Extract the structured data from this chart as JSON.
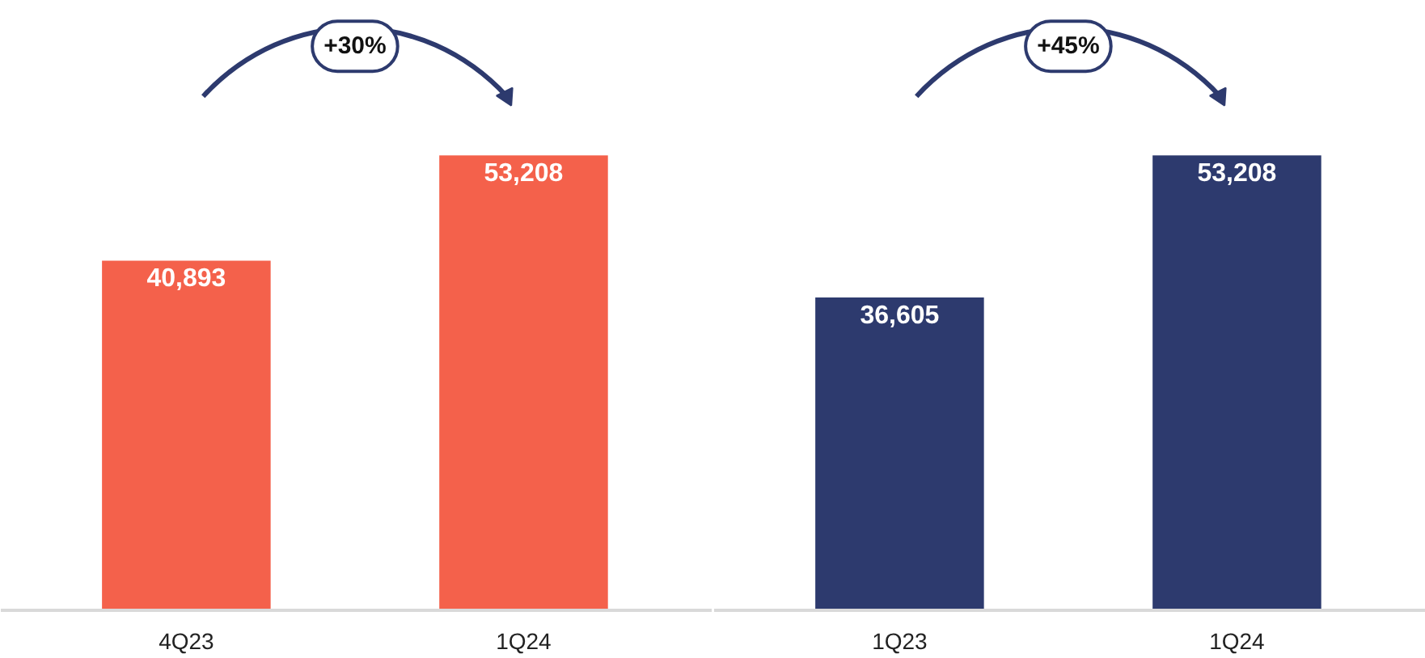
{
  "chart_data": [
    {
      "type": "bar",
      "categories": [
        "4Q23",
        "1Q24"
      ],
      "values": [
        40893,
        53208
      ],
      "value_labels": [
        "40,893",
        "53,208"
      ],
      "color": "#f4614b",
      "annotations": [
        "+30%"
      ]
    },
    {
      "type": "bar",
      "categories": [
        "1Q23",
        "1Q24"
      ],
      "values": [
        36605,
        53208
      ],
      "value_labels": [
        "36,605",
        "53,208"
      ],
      "color": "#2d3a6e",
      "annotations": [
        "+45%"
      ]
    }
  ]
}
